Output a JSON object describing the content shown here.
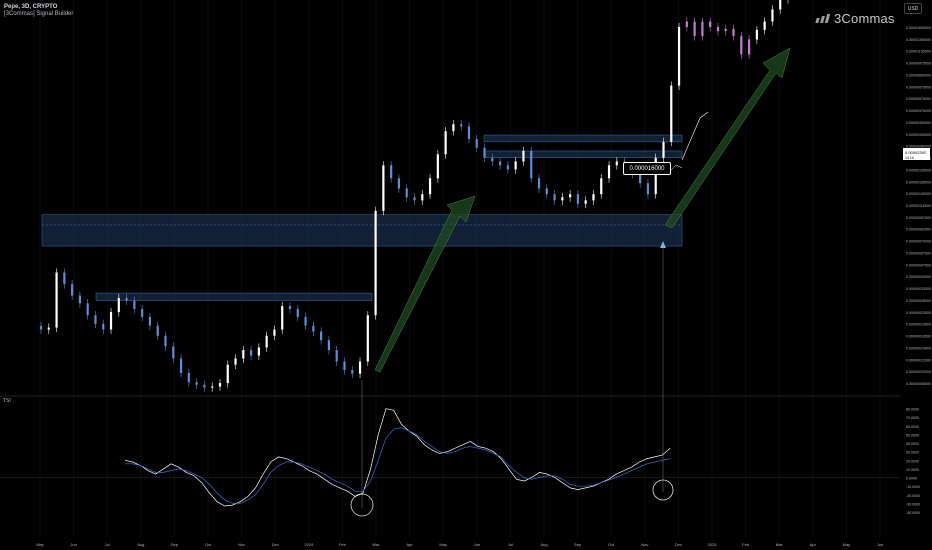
{
  "header": {
    "symbol": "Pepe, 3D, CRYPTO",
    "indicator": "[3Commas] Signal Builder"
  },
  "brand": {
    "name": "3Commas"
  },
  "currency_button": "USD",
  "indicator_label": "TSI",
  "callout": {
    "value": "0.000016000"
  },
  "price_label": {
    "value": "0.00002392",
    "countdown": "1d 1h"
  },
  "colors": {
    "background": "#000000",
    "bull_candle": "#ffffff",
    "bear_candle": "#5b8fd6",
    "pink_candle": "#c27ccf",
    "zone_fill": "#1f3a5f",
    "arrow_fill": "#1f4a22",
    "tsi_line": "#ffffff",
    "signal_line": "#3a6fd8"
  },
  "chart_data": [
    {
      "type": "candlestick",
      "title": "",
      "xlabel": "",
      "ylabel": "",
      "y_scale": "log",
      "y_ticks": [
        "0.00001600000",
        "0.00001350000",
        "0.00001150000",
        "0.00000975000",
        "0.00000800000",
        "0.00000675000",
        "0.00000575000",
        "0.00000475000",
        "0.00000400000",
        "0.00000330000",
        "0.00000280000",
        "0.00000235000",
        "0.00000195000",
        "0.00000165000",
        "0.00000140000",
        "0.00000115000",
        "0.00000097500",
        "0.00000082500",
        "0.00000070000",
        "0.00000057500",
        "0.00000047500",
        "0.00000040000",
        "0.00000033000",
        "0.00000028000",
        "0.00000023500",
        "0.00000019500",
        "0.00000016500",
        "0.00000014000",
        "0.00000012000",
        "0.00000010000",
        "0.00000008500"
      ],
      "x_ticks": [
        "May",
        "Jun",
        "Jul",
        "Aug",
        "Sep",
        "Oct",
        "Nov",
        "Dec",
        "2024",
        "Feb",
        "Mar",
        "Apr",
        "May",
        "Jun",
        "Jul",
        "Aug",
        "Sep",
        "Oct",
        "Nov",
        "Dec",
        "2025",
        "Feb",
        "Mar",
        "Apr",
        "May",
        "Jun"
      ],
      "price_path": [
        1.8e-07,
        1.85e-07,
        4e-07,
        3.4e-07,
        2.9e-07,
        2.6e-07,
        2.2e-07,
        1.95e-07,
        1.8e-07,
        2.3e-07,
        2.8e-07,
        2.7e-07,
        2.4e-07,
        2.15e-07,
        1.9e-07,
        1.65e-07,
        1.42e-07,
        1.2e-07,
        9.8e-08,
        8.6e-08,
        8.3e-08,
        8e-08,
        8.1e-08,
        8.5e-08,
        1.1e-07,
        1.2e-07,
        1.35e-07,
        1.25e-07,
        1.4e-07,
        1.65e-07,
        1.8e-07,
        2.5e-07,
        2.4e-07,
        2.15e-07,
        1.9e-07,
        1.75e-07,
        1.55e-07,
        1.35e-07,
        1.15e-07,
        1.02e-07,
        9.7e-08,
        1.15e-07,
        2.2e-07,
        9.5e-07,
        1.8e-06,
        1.5e-06,
        1.3e-06,
        1.15e-06,
        1.1e-06,
        1.2e-06,
        1.5e-06,
        2.1e-06,
        2.9e-06,
        3.2e-06,
        3.1e-06,
        2.6e-06,
        2.3e-06,
        2e-06,
        1.9e-06,
        1.8e-06,
        1.7e-06,
        1.9e-06,
        2.2e-06,
        1.5e-06,
        1.3e-06,
        1.2e-06,
        1.1e-06,
        1.15e-06,
        1.2e-06,
        1.05e-06,
        1.1e-06,
        1.2e-06,
        1.5e-06,
        1.8e-06,
        1.9e-06,
        1.7e-06,
        1.6e-06,
        1.4e-06,
        1.2e-06,
        2e-06,
        2.5e-06,
        5.5e-06,
        1.25e-05,
        1.35e-05,
        1.1e-05,
        1.35e-05,
        1.25e-05,
        1.18e-05,
        1.22e-05,
        1.1e-05,
        8.5e-06,
        1.05e-05,
        1.2e-05,
        1.35e-05,
        1.6e-05,
        1.85e-05,
        1.9e-05
      ],
      "zones": [
        {
          "from": "May",
          "to": "Nov",
          "low": 5.8e-07,
          "high": 9e-07
        },
        {
          "from": "Jun",
          "to": "Feb",
          "low": 2.7e-07,
          "high": 3e-07
        },
        {
          "from": "Jun",
          "to": "Nov",
          "low": 2.5e-06,
          "high": 2.75e-06
        },
        {
          "from": "Jun",
          "to": "Nov",
          "low": 2e-06,
          "high": 2.2e-06
        }
      ]
    },
    {
      "type": "line",
      "title": "",
      "y_ticks": [
        "80.0000",
        "70.0000",
        "60.0000",
        "50.0000",
        "40.0000",
        "30.0000",
        "20.0000",
        "10.0000",
        "0.0000",
        "-10.0000",
        "-20.0000",
        "-30.0000",
        "-40.0000"
      ],
      "ylim": [
        -40,
        90
      ],
      "series": [
        {
          "values": [
            20,
            18,
            14,
            8,
            4,
            10,
            16,
            12,
            6,
            2,
            -6,
            -18,
            -28,
            -33,
            -32,
            -28,
            -22,
            -12,
            4,
            18,
            24,
            22,
            18,
            14,
            8,
            4,
            -2,
            -8,
            -12,
            -16,
            -22,
            -18,
            10,
            50,
            80,
            78,
            62,
            54,
            48,
            38,
            32,
            28,
            30,
            34,
            38,
            42,
            36,
            34,
            30,
            22,
            10,
            -2,
            -4,
            0,
            6,
            4,
            0,
            -6,
            -12,
            -14,
            -12,
            -10,
            -6,
            -2,
            4,
            8,
            12,
            18,
            22,
            24,
            26,
            34
          ]
        },
        {
          "values": [
            16,
            16,
            14,
            10,
            6,
            6,
            8,
            10,
            8,
            4,
            0,
            -8,
            -18,
            -26,
            -30,
            -30,
            -26,
            -20,
            -8,
            6,
            14,
            18,
            18,
            16,
            12,
            8,
            4,
            -2,
            -6,
            -10,
            -16,
            -16,
            -4,
            20,
            46,
            56,
            58,
            54,
            50,
            42,
            36,
            30,
            28,
            30,
            34,
            36,
            34,
            32,
            28,
            24,
            14,
            6,
            0,
            -2,
            0,
            2,
            2,
            -2,
            -8,
            -10,
            -10,
            -9,
            -6,
            -3,
            0,
            4,
            8,
            12,
            16,
            18,
            20,
            22
          ]
        }
      ]
    }
  ]
}
